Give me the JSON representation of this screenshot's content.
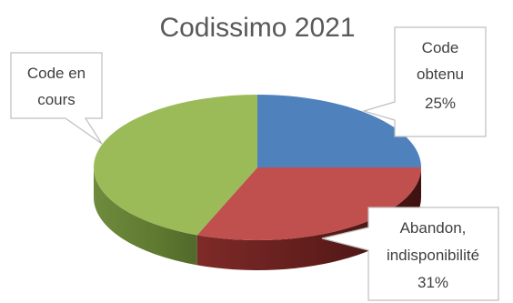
{
  "chart_data": {
    "type": "pie",
    "title": "Codissimo 2021",
    "style": "3d",
    "slices": [
      {
        "label_lines": [
          "Code",
          "obtenu"
        ],
        "value": 25,
        "value_label": "25%",
        "color": "#4F81BD"
      },
      {
        "label_lines": [
          "Abandon,",
          "indisponibilité"
        ],
        "value": 31,
        "value_label": "31%",
        "color": "#C0504D"
      },
      {
        "label_lines": [
          "Code en",
          "cours"
        ],
        "value": 44,
        "value_label": "",
        "color": "#9BBB59"
      }
    ]
  }
}
